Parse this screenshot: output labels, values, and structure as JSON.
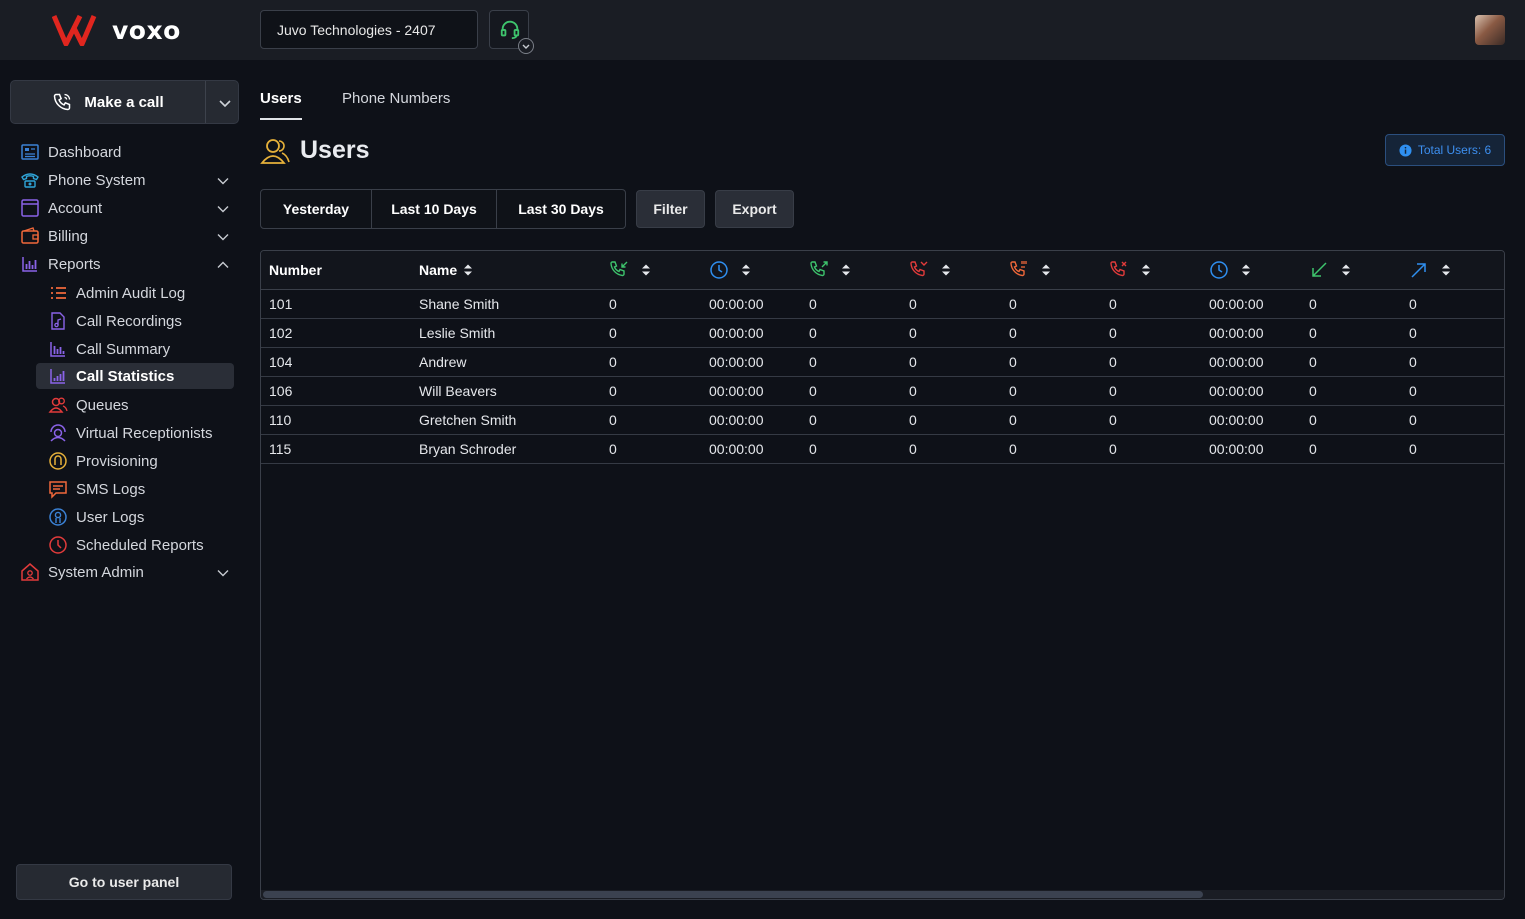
{
  "app": {
    "brand": "voxo",
    "company_selector": "Juvo Technologies - 2407"
  },
  "sidebar": {
    "make_call": "Make a call",
    "items": [
      {
        "label": "Dashboard"
      },
      {
        "label": "Phone System"
      },
      {
        "label": "Account"
      },
      {
        "label": "Billing"
      },
      {
        "label": "Reports"
      }
    ],
    "reports_sub": [
      {
        "label": "Admin Audit Log"
      },
      {
        "label": "Call Recordings"
      },
      {
        "label": "Call Summary"
      },
      {
        "label": "Call Statistics"
      },
      {
        "label": "Queues"
      },
      {
        "label": "Virtual Receptionists"
      },
      {
        "label": "Provisioning"
      },
      {
        "label": "SMS Logs"
      },
      {
        "label": "User Logs"
      },
      {
        "label": "Scheduled Reports"
      }
    ],
    "system_admin": "System Admin",
    "user_panel": "Go to user panel"
  },
  "main": {
    "tabs": [
      {
        "label": "Users"
      },
      {
        "label": "Phone Numbers"
      }
    ],
    "title": "Users",
    "total_badge": "Total Users: 6",
    "range_buttons": [
      "Yesterday",
      "Last 10 Days",
      "Last 30 Days"
    ],
    "filter": "Filter",
    "export": "Export"
  },
  "colors": {
    "green": "#3ec46d",
    "blue": "#2f8ff0",
    "red": "#e23b3b",
    "orange": "#f0683a",
    "yellow": "#e6b13a",
    "purple": "#8a63e8"
  },
  "table": {
    "headers": [
      "Number",
      "Name"
    ],
    "icon_columns": [
      "incoming-call-icon",
      "clock-icon",
      "outgoing-call-icon",
      "missed-call-icon",
      "voicemail-call-icon",
      "rejected-call-icon",
      "clock-icon",
      "arrow-inbound-icon",
      "arrow-outbound-icon"
    ],
    "rows": [
      {
        "number": "101",
        "name": "Shane Smith",
        "c": [
          "0",
          "00:00:00",
          "0",
          "0",
          "0",
          "0",
          "00:00:00",
          "0",
          "0"
        ]
      },
      {
        "number": "102",
        "name": "Leslie Smith",
        "c": [
          "0",
          "00:00:00",
          "0",
          "0",
          "0",
          "0",
          "00:00:00",
          "0",
          "0"
        ]
      },
      {
        "number": "104",
        "name": "Andrew",
        "c": [
          "0",
          "00:00:00",
          "0",
          "0",
          "0",
          "0",
          "00:00:00",
          "0",
          "0"
        ]
      },
      {
        "number": "106",
        "name": "Will Beavers",
        "c": [
          "0",
          "00:00:00",
          "0",
          "0",
          "0",
          "0",
          "00:00:00",
          "0",
          "0"
        ]
      },
      {
        "number": "110",
        "name": "Gretchen Smith",
        "c": [
          "0",
          "00:00:00",
          "0",
          "0",
          "0",
          "0",
          "00:00:00",
          "0",
          "0"
        ]
      },
      {
        "number": "115",
        "name": "Bryan Schroder",
        "c": [
          "0",
          "00:00:00",
          "0",
          "0",
          "0",
          "0",
          "00:00:00",
          "0",
          "0"
        ]
      }
    ]
  }
}
